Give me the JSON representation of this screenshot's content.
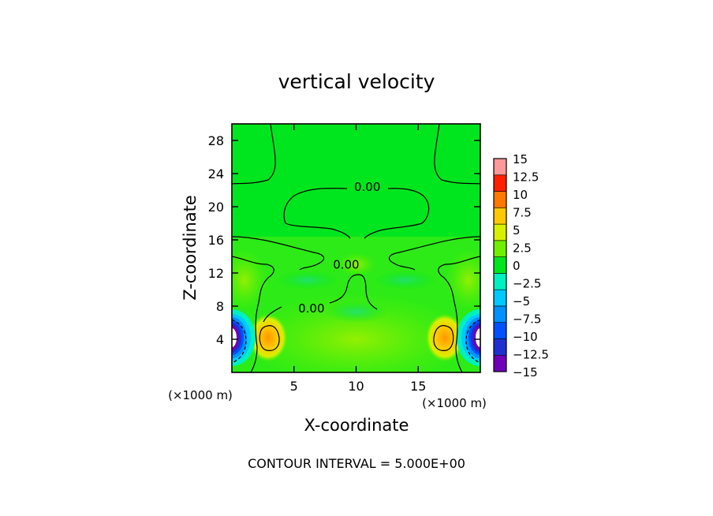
{
  "chart_data": {
    "type": "heatmap",
    "title": "vertical velocity",
    "xlabel": "X-coordinate",
    "ylabel": "Z-coordinate",
    "x_unit_label": "(×1000 m)",
    "z_unit_label": "(×1000 m)",
    "xlim": [
      0,
      20
    ],
    "ylim": [
      0,
      30
    ],
    "x_ticks": [
      5,
      10,
      15
    ],
    "y_ticks": [
      4,
      8,
      12,
      16,
      20,
      24,
      28
    ],
    "contour_interval_text": "CONTOUR INTERVAL = 5.000E+00",
    "contour_labels": [
      {
        "text": "0.00",
        "x": 10.9,
        "z": 22.5
      },
      {
        "text": "0.00",
        "x": 9.2,
        "z": 13.1
      },
      {
        "text": "0.00",
        "x": 6.4,
        "z": 7.8
      }
    ],
    "colorbar": {
      "levels": [
        -15,
        -12.5,
        -10,
        -7.5,
        -5,
        -2.5,
        0,
        2.5,
        5,
        7.5,
        10,
        12.5,
        15
      ],
      "tick_labels": [
        "15",
        "12.5",
        "10",
        "7.5",
        "5",
        "2.5",
        "0",
        "−2.5",
        "−5",
        "−7.5",
        "−10",
        "−12.5",
        "−15"
      ],
      "colors": [
        "#7000b8",
        "#2030d0",
        "#0050ff",
        "#0090ff",
        "#00c8ff",
        "#00f0c0",
        "#00e61e",
        "#70f000",
        "#d8f000",
        "#ffc800",
        "#ff7800",
        "#ff2000",
        "#ff9898"
      ]
    },
    "features": [
      {
        "kind": "updraft",
        "x": 2.9,
        "z": 4.2,
        "value": 10
      },
      {
        "kind": "updraft",
        "x": 17.1,
        "z": 4.2,
        "value": 10
      },
      {
        "kind": "downdraft",
        "x": 0.4,
        "z": 4.2,
        "value": -12.5
      },
      {
        "kind": "downdraft",
        "x": 19.6,
        "z": 4.2,
        "value": -12.5
      }
    ]
  }
}
